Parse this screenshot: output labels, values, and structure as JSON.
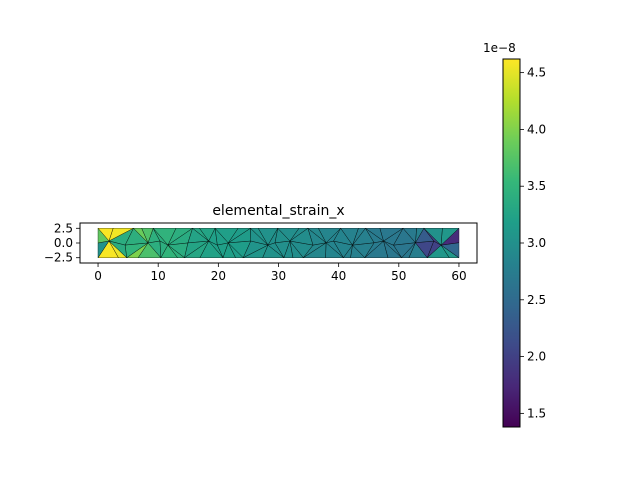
{
  "chart_data": {
    "type": "heatmap",
    "subtype": "triangular-mesh",
    "title": "elemental_strain_x",
    "xlabel": "",
    "ylabel": "",
    "xlim": [
      -3,
      63
    ],
    "ylim": [
      -3.4,
      3.4
    ],
    "x_ticks": [
      0,
      10,
      20,
      30,
      40,
      50,
      60
    ],
    "x_tick_labels": [
      "0",
      "10",
      "20",
      "30",
      "40",
      "50",
      "60"
    ],
    "y_ticks": [
      2.5,
      0.0,
      -2.5
    ],
    "y_tick_labels": [
      "2.5",
      "0.0",
      "−2.5"
    ],
    "domain": {
      "x": [
        0,
        60
      ],
      "y": [
        -2.5,
        2.5
      ]
    },
    "field_description": "strain values decrease from left (~3.5) to right (~2.7), with peaks ~4.6 at left corners and minimum ~1.4 at the right middle tip",
    "samples": [
      {
        "x": 1,
        "y": 1.8,
        "value": 4.6
      },
      {
        "x": 1,
        "y": -1.8,
        "value": 4.6
      },
      {
        "x": 1.5,
        "y": 0,
        "value": 2.6
      },
      {
        "x": 5,
        "y": 0,
        "value": 3.45
      },
      {
        "x": 10,
        "y": 0,
        "value": 3.4
      },
      {
        "x": 20,
        "y": 0,
        "value": 3.2
      },
      {
        "x": 30,
        "y": 0,
        "value": 3.0
      },
      {
        "x": 40,
        "y": 0,
        "value": 2.85
      },
      {
        "x": 50,
        "y": 0,
        "value": 2.7
      },
      {
        "x": 58,
        "y": 0,
        "value": 1.4
      },
      {
        "x": 59,
        "y": 1.8,
        "value": 3.1
      },
      {
        "x": 59,
        "y": -1.8,
        "value": 3.1
      }
    ],
    "colorbar": {
      "colormap": "viridis",
      "min": 1.38,
      "max": 4.62,
      "ticks": [
        1.5,
        2.0,
        2.5,
        3.0,
        3.5,
        4.0,
        4.5
      ],
      "tick_labels": [
        "1.5",
        "2.0",
        "2.5",
        "3.0",
        "3.5",
        "4.0",
        "4.5"
      ],
      "offset_label": "1e−8"
    }
  }
}
